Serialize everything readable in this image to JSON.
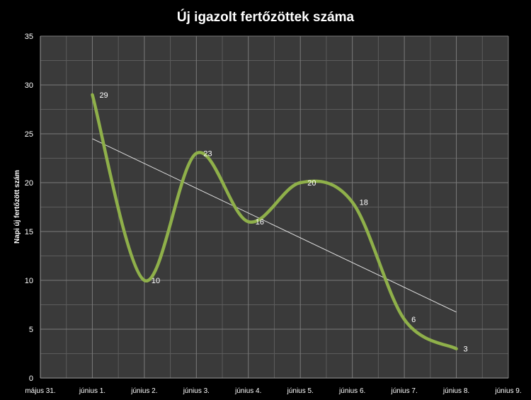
{
  "chart_data": {
    "type": "line",
    "title": "Új igazolt fertőzöttek száma",
    "xlabel": "",
    "ylabel": "Napi új fertőzött szám",
    "ylim": [
      0,
      35
    ],
    "yticks": [
      0,
      5,
      10,
      15,
      20,
      25,
      30,
      35
    ],
    "categories": [
      "május 31.",
      "június 1.",
      "június 2.",
      "június 3.",
      "június 4.",
      "június 5.",
      "június 6.",
      "június 7.",
      "június 8.",
      "június 9."
    ],
    "series": [
      {
        "name": "",
        "x": [
          "június 1.",
          "június 2.",
          "június 3.",
          "június 4.",
          "június 5.",
          "június 6.",
          "június 7.",
          "június 8."
        ],
        "values": [
          29,
          10,
          23,
          16,
          20,
          18,
          6,
          3
        ],
        "data_labels": [
          "29",
          "10",
          "23",
          "16",
          "20",
          "18",
          "6",
          "3"
        ],
        "smooth": true
      }
    ],
    "trendline": {
      "type": "linear"
    },
    "grid": true,
    "legend": "none",
    "colors": {
      "background": "#000000",
      "plot_area": "#3a3a3a",
      "grid": "#7a7a7a",
      "series": "#8fb04a",
      "trendline": "#e0e0e0",
      "text": "#ffffff"
    }
  }
}
